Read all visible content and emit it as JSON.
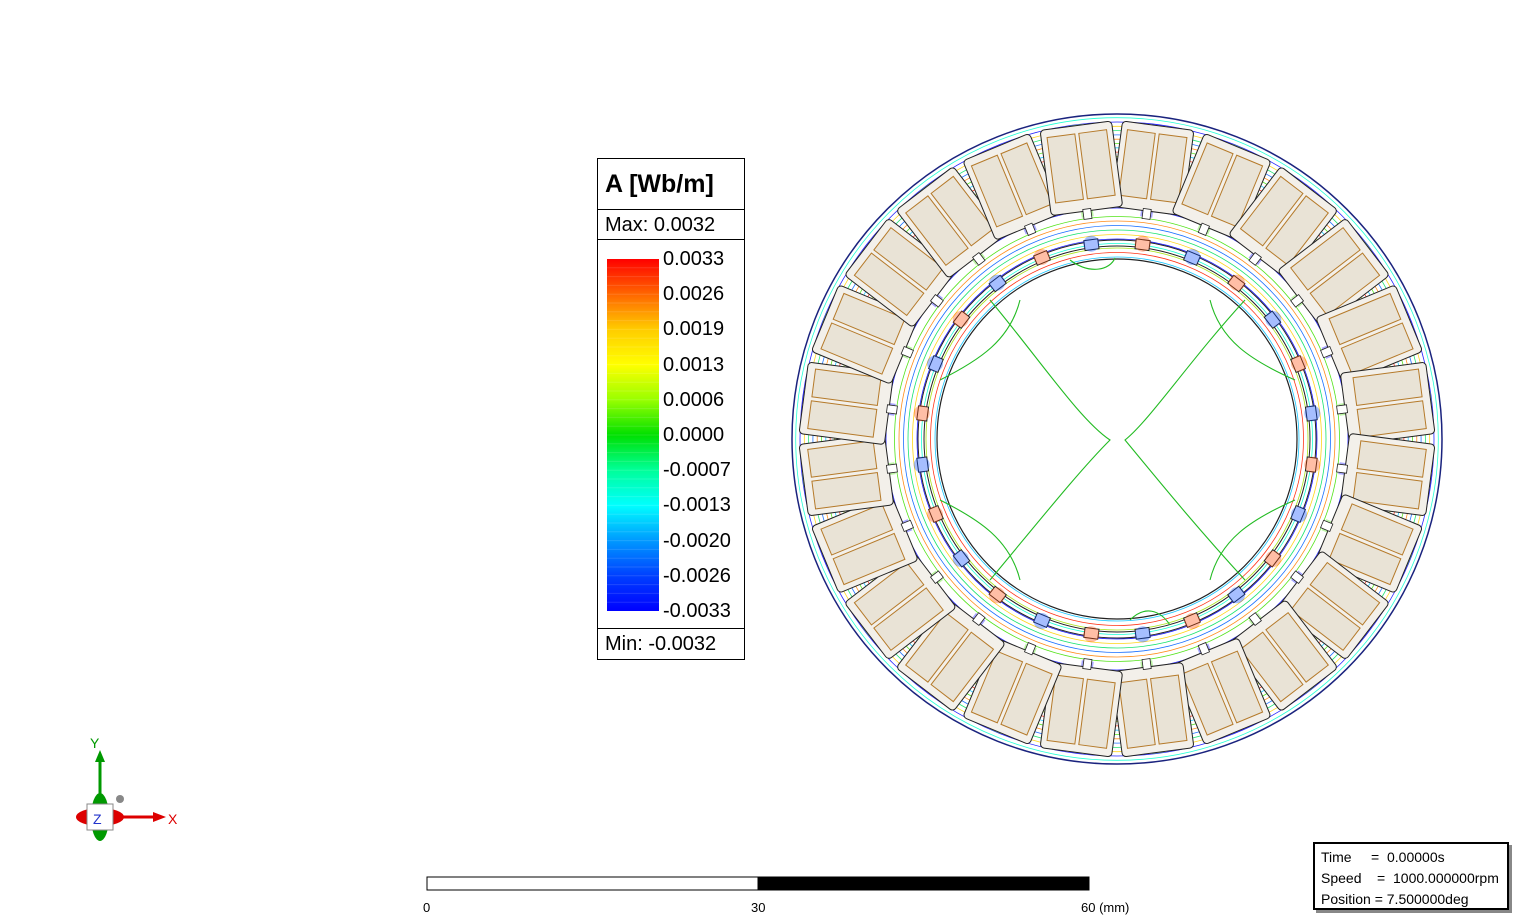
{
  "legend": {
    "title": "A [Wb/m]",
    "max_text": "Max: 0.0032",
    "min_text": "Min: -0.0032",
    "ticks": [
      "0.0033",
      "0.0026",
      "0.0019",
      "0.0013",
      "0.0006",
      "0.0000",
      "-0.0007",
      "-0.0013",
      "-0.0020",
      "-0.0026",
      "-0.0033"
    ],
    "colors": [
      "#ff0000",
      "#ff6600",
      "#ffcc00",
      "#ffff00",
      "#99ff00",
      "#00e000",
      "#00ff99",
      "#00ffff",
      "#0099ff",
      "#0040ff",
      "#0000ff"
    ]
  },
  "axes": {
    "y_label": "Y",
    "x_label": "X",
    "z_label": "Z"
  },
  "scale_bar": {
    "ticks": [
      "0",
      "30",
      "60 (mm)"
    ]
  },
  "info": {
    "time": "Time     =  0.00000s",
    "speed": "Speed    =  1000.000000rpm",
    "position": "Position = 7.500000deg"
  }
}
